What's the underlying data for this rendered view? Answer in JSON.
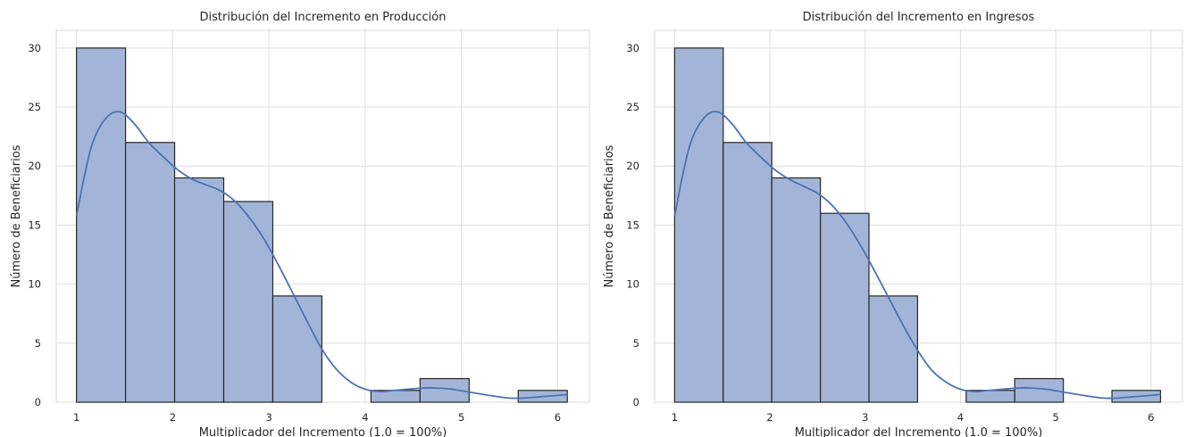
{
  "chart_data": [
    {
      "type": "histogram",
      "title": "Distribución del Incremento en Producción",
      "xlabel": "Multiplicador del Incremento (1.0 = 100%)",
      "ylabel": "Número de Beneficiarios",
      "xlim": [
        0.79,
        6.33
      ],
      "ylim": [
        0,
        31.5
      ],
      "xticks": [
        1,
        2,
        3,
        4,
        5,
        6
      ],
      "yticks": [
        0,
        5,
        10,
        15,
        20,
        25,
        30
      ],
      "grid": true,
      "bins": [
        {
          "x0": 1.0,
          "x1": 1.51,
          "count": 30
        },
        {
          "x0": 1.51,
          "x1": 2.02,
          "count": 22
        },
        {
          "x0": 2.02,
          "x1": 2.53,
          "count": 19
        },
        {
          "x0": 2.53,
          "x1": 3.04,
          "count": 17
        },
        {
          "x0": 3.04,
          "x1": 3.55,
          "count": 9
        },
        {
          "x0": 3.55,
          "x1": 4.06,
          "count": 0
        },
        {
          "x0": 4.06,
          "x1": 4.57,
          "count": 1
        },
        {
          "x0": 4.57,
          "x1": 5.08,
          "count": 2
        },
        {
          "x0": 5.08,
          "x1": 5.59,
          "count": 0
        },
        {
          "x0": 5.59,
          "x1": 6.1,
          "count": 1
        }
      ],
      "kde": {
        "x": [
          1.0,
          1.15,
          1.3,
          1.45,
          1.6,
          1.75,
          1.9,
          2.05,
          2.2,
          2.35,
          2.5,
          2.65,
          2.8,
          2.95,
          3.1,
          3.25,
          3.4,
          3.55,
          3.7,
          3.85,
          4.0,
          4.15,
          4.3,
          4.45,
          4.6,
          4.75,
          4.9,
          5.05,
          5.2,
          5.35,
          5.5,
          5.65,
          5.8,
          5.95,
          6.1
        ],
        "y": [
          15.8,
          21.5,
          24.0,
          24.6,
          23.6,
          22.0,
          20.8,
          19.7,
          18.9,
          18.4,
          17.9,
          17.0,
          15.6,
          13.8,
          11.6,
          9.2,
          6.8,
          4.5,
          2.8,
          1.7,
          1.1,
          0.9,
          1.0,
          1.1,
          1.2,
          1.2,
          1.1,
          0.9,
          0.7,
          0.5,
          0.35,
          0.35,
          0.45,
          0.55,
          0.65
        ]
      }
    },
    {
      "type": "histogram",
      "title": "Distribución del Incremento en Ingresos",
      "xlabel": "Multiplicador del Incremento (1.0 = 100%)",
      "ylabel": "Número de Beneficiarios",
      "xlim": [
        0.79,
        6.33
      ],
      "ylim": [
        0,
        31.5
      ],
      "xticks": [
        1,
        2,
        3,
        4,
        5,
        6
      ],
      "yticks": [
        0,
        5,
        10,
        15,
        20,
        25,
        30
      ],
      "grid": true,
      "bins": [
        {
          "x0": 1.0,
          "x1": 1.51,
          "count": 30
        },
        {
          "x0": 1.51,
          "x1": 2.02,
          "count": 22
        },
        {
          "x0": 2.02,
          "x1": 2.53,
          "count": 19
        },
        {
          "x0": 2.53,
          "x1": 3.04,
          "count": 16
        },
        {
          "x0": 3.04,
          "x1": 3.55,
          "count": 9
        },
        {
          "x0": 3.55,
          "x1": 4.06,
          "count": 0
        },
        {
          "x0": 4.06,
          "x1": 4.57,
          "count": 1
        },
        {
          "x0": 4.57,
          "x1": 5.08,
          "count": 2
        },
        {
          "x0": 5.08,
          "x1": 5.59,
          "count": 0
        },
        {
          "x0": 5.59,
          "x1": 6.1,
          "count": 1
        }
      ],
      "kde": {
        "x": [
          1.0,
          1.15,
          1.3,
          1.45,
          1.6,
          1.75,
          1.9,
          2.05,
          2.2,
          2.35,
          2.5,
          2.65,
          2.8,
          2.95,
          3.1,
          3.25,
          3.4,
          3.55,
          3.7,
          3.85,
          4.0,
          4.15,
          4.3,
          4.45,
          4.6,
          4.75,
          4.9,
          5.05,
          5.2,
          5.35,
          5.5,
          5.65,
          5.8,
          5.95,
          6.1
        ],
        "y": [
          15.8,
          21.5,
          24.0,
          24.6,
          23.6,
          22.0,
          20.8,
          19.7,
          18.9,
          18.3,
          17.7,
          16.7,
          15.2,
          13.3,
          11.1,
          8.8,
          6.5,
          4.4,
          2.7,
          1.7,
          1.1,
          0.9,
          1.0,
          1.1,
          1.2,
          1.2,
          1.1,
          0.9,
          0.7,
          0.5,
          0.35,
          0.35,
          0.45,
          0.55,
          0.65
        ]
      }
    }
  ],
  "colors": {
    "bar_fill": "#a2b5d8",
    "bar_edge": "#262626",
    "kde_line": "#4c72b0",
    "grid": "#dedede",
    "axes_edge": "#d9d9d9"
  }
}
